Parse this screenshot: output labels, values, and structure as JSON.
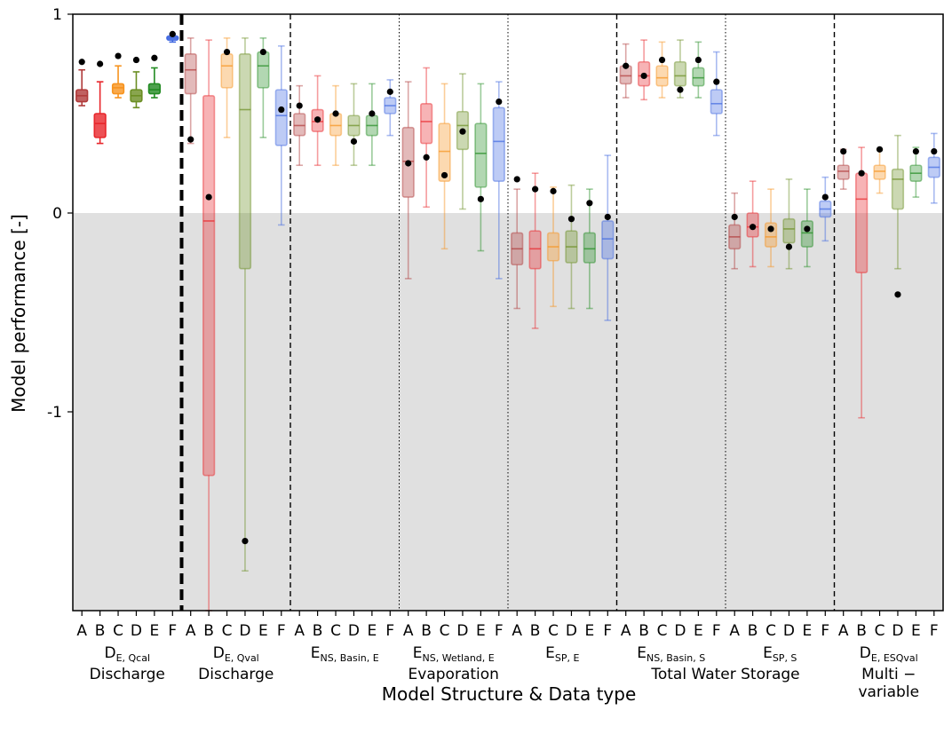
{
  "chart_data": {
    "type": "box",
    "ylabel": "Model performance [-]",
    "xlabel": "Model Structure & Data type",
    "ylim": [
      -2,
      1
    ],
    "yticks": [
      {
        "value": 1,
        "label": "1"
      },
      {
        "value": 0,
        "label": "0"
      },
      {
        "value": -1,
        "label": "-1"
      }
    ],
    "colors": {
      "A": "#b03a3a",
      "B": "#e8262b",
      "C": "#f7931e",
      "D": "#6b8e23",
      "E": "#228b22",
      "F": "#4169e1"
    },
    "shaded_region": {
      "from": -2,
      "to": 0,
      "color": "#e0e0e0"
    },
    "groups": [
      {
        "name": "D",
        "sub": "E, Qcal",
        "category": "Discharge",
        "boxes": [
          {
            "label": "A",
            "whislo": 0.54,
            "q1": 0.56,
            "med": 0.59,
            "q3": 0.62,
            "whishi": 0.72,
            "dot": 0.76,
            "alpha": "strong"
          },
          {
            "label": "B",
            "whislo": 0.35,
            "q1": 0.38,
            "med": 0.45,
            "q3": 0.5,
            "whishi": 0.66,
            "dot": 0.75,
            "alpha": "strong"
          },
          {
            "label": "C",
            "whislo": 0.58,
            "q1": 0.6,
            "med": 0.63,
            "q3": 0.65,
            "whishi": 0.74,
            "dot": 0.79,
            "alpha": "strong"
          },
          {
            "label": "D",
            "whislo": 0.53,
            "q1": 0.56,
            "med": 0.59,
            "q3": 0.62,
            "whishi": 0.71,
            "dot": 0.77,
            "alpha": "strong"
          },
          {
            "label": "E",
            "whislo": 0.58,
            "q1": 0.6,
            "med": 0.62,
            "q3": 0.65,
            "whishi": 0.73,
            "dot": 0.78,
            "alpha": "strong"
          },
          {
            "label": "F",
            "whislo": 0.86,
            "q1": 0.87,
            "med": 0.88,
            "q3": 0.89,
            "whishi": 0.9,
            "dot": 0.9,
            "alpha": "strong"
          }
        ]
      },
      {
        "name": "D",
        "sub": "E, Qval",
        "category": "Discharge",
        "boxes": [
          {
            "label": "A",
            "whislo": 0.35,
            "q1": 0.6,
            "med": 0.72,
            "q3": 0.8,
            "whishi": 0.88,
            "dot": 0.37,
            "alpha": "light"
          },
          {
            "label": "B",
            "whislo": -2.0,
            "q1": -1.32,
            "med": -0.04,
            "q3": 0.59,
            "whishi": 0.87,
            "dot": 0.08,
            "alpha": "light"
          },
          {
            "label": "C",
            "whislo": 0.38,
            "q1": 0.63,
            "med": 0.74,
            "q3": 0.8,
            "whishi": 0.88,
            "dot": 0.81,
            "alpha": "light"
          },
          {
            "label": "D",
            "whislo": -1.8,
            "q1": -0.28,
            "med": 0.52,
            "q3": 0.8,
            "whishi": 0.88,
            "dot": -1.65,
            "alpha": "light"
          },
          {
            "label": "E",
            "whislo": 0.38,
            "q1": 0.63,
            "med": 0.74,
            "q3": 0.81,
            "whishi": 0.88,
            "dot": 0.81,
            "alpha": "light"
          },
          {
            "label": "F",
            "whislo": -0.06,
            "q1": 0.34,
            "med": 0.49,
            "q3": 0.62,
            "whishi": 0.84,
            "dot": 0.52,
            "alpha": "light"
          }
        ]
      },
      {
        "name": "E",
        "sub": "NS, Basin, E",
        "category": "",
        "boxes": [
          {
            "label": "A",
            "whislo": 0.24,
            "q1": 0.39,
            "med": 0.44,
            "q3": 0.5,
            "whishi": 0.64,
            "dot": 0.54,
            "alpha": "light"
          },
          {
            "label": "B",
            "whislo": 0.24,
            "q1": 0.41,
            "med": 0.46,
            "q3": 0.52,
            "whishi": 0.69,
            "dot": 0.47,
            "alpha": "light"
          },
          {
            "label": "C",
            "whislo": 0.24,
            "q1": 0.39,
            "med": 0.44,
            "q3": 0.5,
            "whishi": 0.64,
            "dot": 0.5,
            "alpha": "light"
          },
          {
            "label": "D",
            "whislo": 0.24,
            "q1": 0.39,
            "med": 0.44,
            "q3": 0.49,
            "whishi": 0.65,
            "dot": 0.36,
            "alpha": "light"
          },
          {
            "label": "E",
            "whislo": 0.24,
            "q1": 0.39,
            "med": 0.44,
            "q3": 0.49,
            "whishi": 0.65,
            "dot": 0.5,
            "alpha": "light"
          },
          {
            "label": "F",
            "whislo": 0.39,
            "q1": 0.5,
            "med": 0.54,
            "q3": 0.58,
            "whishi": 0.67,
            "dot": 0.61,
            "alpha": "light"
          }
        ]
      },
      {
        "name": "E",
        "sub": "NS, Wetland, E",
        "category": "Evaporation",
        "boxes": [
          {
            "label": "A",
            "whislo": -0.33,
            "q1": 0.08,
            "med": 0.26,
            "q3": 0.43,
            "whishi": 0.66,
            "dot": 0.25,
            "alpha": "light"
          },
          {
            "label": "B",
            "whislo": 0.03,
            "q1": 0.35,
            "med": 0.46,
            "q3": 0.55,
            "whishi": 0.73,
            "dot": 0.28,
            "alpha": "light"
          },
          {
            "label": "C",
            "whislo": -0.18,
            "q1": 0.16,
            "med": 0.31,
            "q3": 0.45,
            "whishi": 0.65,
            "dot": 0.19,
            "alpha": "light"
          },
          {
            "label": "D",
            "whislo": 0.02,
            "q1": 0.32,
            "med": 0.44,
            "q3": 0.51,
            "whishi": 0.7,
            "dot": 0.41,
            "alpha": "light"
          },
          {
            "label": "E",
            "whislo": -0.19,
            "q1": 0.13,
            "med": 0.3,
            "q3": 0.45,
            "whishi": 0.65,
            "dot": 0.07,
            "alpha": "light"
          },
          {
            "label": "F",
            "whislo": -0.33,
            "q1": 0.16,
            "med": 0.36,
            "q3": 0.53,
            "whishi": 0.66,
            "dot": 0.56,
            "alpha": "light"
          }
        ]
      },
      {
        "name": "E",
        "sub": "SP, E",
        "category": "",
        "boxes": [
          {
            "label": "A",
            "whislo": -0.48,
            "q1": -0.26,
            "med": -0.18,
            "q3": -0.1,
            "whishi": 0.12,
            "dot": 0.17,
            "alpha": "light"
          },
          {
            "label": "B",
            "whislo": -0.58,
            "q1": -0.28,
            "med": -0.18,
            "q3": -0.09,
            "whishi": 0.2,
            "dot": 0.12,
            "alpha": "light"
          },
          {
            "label": "C",
            "whislo": -0.47,
            "q1": -0.24,
            "med": -0.17,
            "q3": -0.1,
            "whishi": 0.13,
            "dot": 0.11,
            "alpha": "light"
          },
          {
            "label": "D",
            "whislo": -0.48,
            "q1": -0.25,
            "med": -0.17,
            "q3": -0.09,
            "whishi": 0.14,
            "dot": -0.03,
            "alpha": "light"
          },
          {
            "label": "E",
            "whislo": -0.48,
            "q1": -0.25,
            "med": -0.18,
            "q3": -0.1,
            "whishi": 0.12,
            "dot": 0.05,
            "alpha": "light"
          },
          {
            "label": "F",
            "whislo": -0.54,
            "q1": -0.23,
            "med": -0.13,
            "q3": -0.04,
            "whishi": 0.29,
            "dot": -0.02,
            "alpha": "light"
          }
        ]
      },
      {
        "name": "E",
        "sub": "NS, Basin, S",
        "category": "",
        "boxes": [
          {
            "label": "A",
            "whislo": 0.58,
            "q1": 0.65,
            "med": 0.69,
            "q3": 0.74,
            "whishi": 0.85,
            "dot": 0.74,
            "alpha": "light"
          },
          {
            "label": "B",
            "whislo": 0.57,
            "q1": 0.64,
            "med": 0.69,
            "q3": 0.76,
            "whishi": 0.87,
            "dot": 0.69,
            "alpha": "light"
          },
          {
            "label": "C",
            "whislo": 0.58,
            "q1": 0.64,
            "med": 0.68,
            "q3": 0.74,
            "whishi": 0.86,
            "dot": 0.77,
            "alpha": "light"
          },
          {
            "label": "D",
            "whislo": 0.58,
            "q1": 0.64,
            "med": 0.69,
            "q3": 0.76,
            "whishi": 0.87,
            "dot": 0.62,
            "alpha": "light"
          },
          {
            "label": "E",
            "whislo": 0.58,
            "q1": 0.64,
            "med": 0.68,
            "q3": 0.73,
            "whishi": 0.86,
            "dot": 0.77,
            "alpha": "light"
          },
          {
            "label": "F",
            "whislo": 0.39,
            "q1": 0.5,
            "med": 0.55,
            "q3": 0.62,
            "whishi": 0.81,
            "dot": 0.66,
            "alpha": "light"
          }
        ]
      },
      {
        "name": "E",
        "sub": "SP, S",
        "category": "Total Water Storage",
        "boxes": [
          {
            "label": "A",
            "whislo": -0.28,
            "q1": -0.18,
            "med": -0.12,
            "q3": -0.06,
            "whishi": 0.1,
            "dot": -0.02,
            "alpha": "light"
          },
          {
            "label": "B",
            "whislo": -0.27,
            "q1": -0.12,
            "med": -0.07,
            "q3": 0.0,
            "whishi": 0.16,
            "dot": -0.07,
            "alpha": "light"
          },
          {
            "label": "C",
            "whislo": -0.27,
            "q1": -0.17,
            "med": -0.12,
            "q3": -0.05,
            "whishi": 0.12,
            "dot": -0.08,
            "alpha": "light"
          },
          {
            "label": "D",
            "whislo": -0.28,
            "q1": -0.15,
            "med": -0.08,
            "q3": -0.03,
            "whishi": 0.17,
            "dot": -0.17,
            "alpha": "light"
          },
          {
            "label": "E",
            "whislo": -0.27,
            "q1": -0.17,
            "med": -0.1,
            "q3": -0.04,
            "whishi": 0.12,
            "dot": -0.08,
            "alpha": "light"
          },
          {
            "label": "F",
            "whislo": -0.14,
            "q1": -0.02,
            "med": 0.02,
            "q3": 0.06,
            "whishi": 0.18,
            "dot": 0.08,
            "alpha": "light"
          }
        ]
      },
      {
        "name": "D",
        "sub": "E, ESQval",
        "category": "Multi −\nvariable",
        "boxes": [
          {
            "label": "A",
            "whislo": 0.12,
            "q1": 0.17,
            "med": 0.21,
            "q3": 0.24,
            "whishi": 0.32,
            "dot": 0.31,
            "alpha": "light"
          },
          {
            "label": "B",
            "whislo": -1.03,
            "q1": -0.3,
            "med": 0.07,
            "q3": 0.2,
            "whishi": 0.33,
            "dot": 0.2,
            "alpha": "light"
          },
          {
            "label": "C",
            "whislo": 0.1,
            "q1": 0.17,
            "med": 0.21,
            "q3": 0.24,
            "whishi": 0.32,
            "dot": 0.32,
            "alpha": "light"
          },
          {
            "label": "D",
            "whislo": -0.28,
            "q1": 0.02,
            "med": 0.17,
            "q3": 0.22,
            "whishi": 0.39,
            "dot": -0.41,
            "alpha": "light"
          },
          {
            "label": "E",
            "whislo": 0.08,
            "q1": 0.16,
            "med": 0.2,
            "q3": 0.24,
            "whishi": 0.33,
            "dot": 0.31,
            "alpha": "light"
          },
          {
            "label": "F",
            "whislo": 0.05,
            "q1": 0.18,
            "med": 0.23,
            "q3": 0.28,
            "whishi": 0.4,
            "dot": 0.31,
            "alpha": "light"
          }
        ]
      }
    ],
    "separators": [
      {
        "after_group": 0,
        "style": "thick-dashed"
      },
      {
        "after_group": 1,
        "style": "dashed"
      },
      {
        "after_group": 2,
        "style": "dotted"
      },
      {
        "after_group": 3,
        "style": "dotted"
      },
      {
        "after_group": 4,
        "style": "dashed"
      },
      {
        "after_group": 5,
        "style": "dotted"
      },
      {
        "after_group": 6,
        "style": "dashed"
      }
    ]
  }
}
